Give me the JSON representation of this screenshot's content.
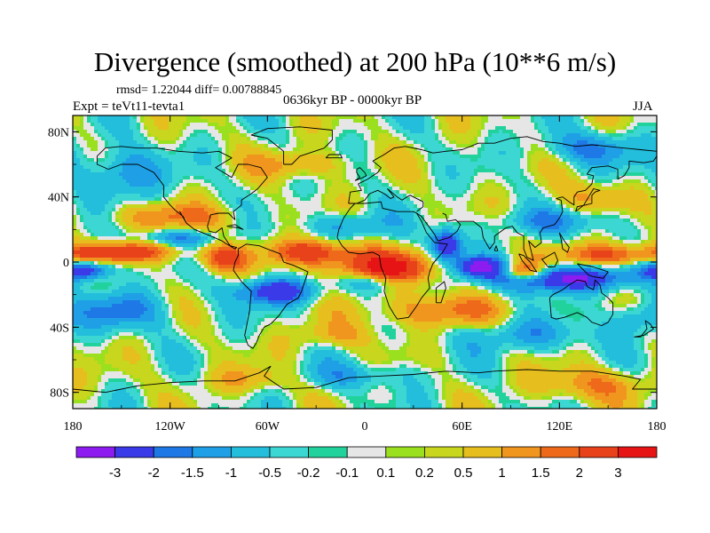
{
  "title": "Divergence (smoothed) at 200 hPa (10**6 m/s)",
  "stats": "rmsd= 1.22044 diff= 0.00788845",
  "experiment": "Expt = teVt11-tevta1",
  "period": "0636kyr BP - 0000kyr BP",
  "season": "JJA",
  "map": {
    "lat_ticks": [
      {
        "value": 80,
        "label": "80N"
      },
      {
        "value": 40,
        "label": "40N"
      },
      {
        "value": 0,
        "label": "0"
      },
      {
        "value": -40,
        "label": "40S"
      },
      {
        "value": -80,
        "label": "80S"
      }
    ],
    "lon_ticks": [
      {
        "value": -180,
        "label": "180"
      },
      {
        "value": -120,
        "label": "120W"
      },
      {
        "value": -60,
        "label": "60W"
      },
      {
        "value": 0,
        "label": "0"
      },
      {
        "value": 60,
        "label": "60E"
      },
      {
        "value": 120,
        "label": "120E"
      },
      {
        "value": 180,
        "label": "180"
      }
    ],
    "lat_range": [
      -90,
      90
    ],
    "lon_range": [
      -180,
      180
    ],
    "field_blobs": [
      {
        "lon": 12,
        "lat": -4,
        "rlon": 30,
        "rlat": 10,
        "amp": 3.4
      },
      {
        "lon": -32,
        "lat": 6,
        "rlon": 28,
        "rlat": 8,
        "amp": 2.6
      },
      {
        "lon": -148,
        "lat": 6,
        "rlon": 32,
        "rlat": 6,
        "amp": 2.6
      },
      {
        "lon": -88,
        "lat": 2,
        "rlon": 14,
        "rlat": 8,
        "amp": 2.2
      },
      {
        "lon": 150,
        "lat": 4,
        "rlon": 32,
        "rlat": 7,
        "amp": 2.3
      },
      {
        "lon": 98,
        "lat": -6,
        "rlon": 12,
        "rlat": 6,
        "amp": 2.8
      },
      {
        "lon": -120,
        "lat": 28,
        "rlon": 40,
        "rlat": 8,
        "amp": 1.4
      },
      {
        "lon": 45,
        "lat": -30,
        "rlon": 40,
        "rlat": 10,
        "amp": 1.6
      },
      {
        "lon": -40,
        "lat": 60,
        "rlon": 30,
        "rlat": 8,
        "amp": 1.2
      },
      {
        "lon": 140,
        "lat": 40,
        "rlon": 25,
        "rlat": 10,
        "amp": 1.0
      },
      {
        "lon": 140,
        "lat": -75,
        "rlon": 35,
        "rlat": 10,
        "amp": 1.4
      },
      {
        "lon": -70,
        "lat": -72,
        "rlon": 30,
        "rlat": 8,
        "amp": 1.0
      },
      {
        "lon": -20,
        "lat": -45,
        "rlon": 25,
        "rlat": 8,
        "amp": 1.0
      },
      {
        "lon": 50,
        "lat": 10,
        "rlon": 10,
        "rlat": 10,
        "amp": -3.2
      },
      {
        "lon": 70,
        "lat": -3,
        "rlon": 14,
        "rlat": 6,
        "amp": -3.0
      },
      {
        "lon": 120,
        "lat": -10,
        "rlon": 40,
        "rlat": 8,
        "amp": -3.3
      },
      {
        "lon": -172,
        "lat": -5,
        "rlon": 16,
        "rlat": 6,
        "amp": -3.0
      },
      {
        "lon": -55,
        "lat": -18,
        "rlon": 25,
        "rlat": 8,
        "amp": -2.6
      },
      {
        "lon": 5,
        "lat": -12,
        "rlon": 20,
        "rlat": 6,
        "amp": -1.8
      },
      {
        "lon": -115,
        "lat": 15,
        "rlon": 25,
        "rlat": 5,
        "amp": -1.4
      },
      {
        "lon": -10,
        "lat": 22,
        "rlon": 25,
        "rlat": 8,
        "amp": -1.3
      },
      {
        "lon": 120,
        "lat": 25,
        "rlon": 40,
        "rlat": 8,
        "amp": -1.2
      },
      {
        "lon": -150,
        "lat": 55,
        "rlon": 25,
        "rlat": 15,
        "amp": -1.6
      },
      {
        "lon": 140,
        "lat": 70,
        "rlon": 30,
        "rlat": 10,
        "amp": -1.5
      },
      {
        "lon": -150,
        "lat": -30,
        "rlon": 30,
        "rlat": 12,
        "amp": -1.5
      },
      {
        "lon": 100,
        "lat": -45,
        "rlon": 40,
        "rlat": 10,
        "amp": -1.2
      },
      {
        "lon": -10,
        "lat": -70,
        "rlon": 40,
        "rlat": 8,
        "amp": -1.0
      },
      {
        "lon": 165,
        "lat": -35,
        "rlon": 15,
        "rlat": 10,
        "amp": -1.2
      }
    ]
  },
  "colorbar": {
    "boundary_labels": [
      "-3",
      "-2",
      "-1.5",
      "-1",
      "-0.5",
      "-0.2",
      "-0.1",
      "0.1",
      "0.2",
      "0.5",
      "1",
      "1.5",
      "2",
      "3"
    ],
    "colors": [
      "#8c1cf0",
      "#3a3ae8",
      "#1e78e6",
      "#1fa0e6",
      "#22bedb",
      "#3dd7d3",
      "#22d29c",
      "#e6e6e6",
      "#9be01e",
      "#c8d61e",
      "#e6be1e",
      "#f0961e",
      "#ee6a1a",
      "#e8421a",
      "#e61414"
    ]
  },
  "coastlines": [
    [
      [
        -165,
        65
      ],
      [
        -160,
        70
      ],
      [
        -150,
        71
      ],
      [
        -140,
        70
      ],
      [
        -128,
        70
      ],
      [
        -115,
        68
      ],
      [
        -100,
        67
      ],
      [
        -90,
        68
      ],
      [
        -82,
        64
      ],
      [
        -92,
        58
      ],
      [
        -82,
        52
      ],
      [
        -78,
        60
      ],
      [
        -72,
        60
      ],
      [
        -64,
        58
      ],
      [
        -60,
        52
      ],
      [
        -66,
        45
      ],
      [
        -70,
        42
      ],
      [
        -76,
        38
      ],
      [
        -76,
        35
      ],
      [
        -81,
        31
      ],
      [
        -80,
        26
      ],
      [
        -82,
        28
      ],
      [
        -84,
        30
      ],
      [
        -90,
        30
      ],
      [
        -95,
        29
      ],
      [
        -97,
        22
      ],
      [
        -96,
        19
      ],
      [
        -92,
        18
      ],
      [
        -88,
        21
      ],
      [
        -87,
        16
      ],
      [
        -83,
        10
      ],
      [
        -79,
        9
      ],
      [
        -80,
        8
      ],
      [
        -85,
        11
      ],
      [
        -88,
        13
      ],
      [
        -95,
        16
      ],
      [
        -105,
        20
      ],
      [
        -110,
        24
      ],
      [
        -114,
        31
      ],
      [
        -110,
        24
      ],
      [
        -112,
        28
      ],
      [
        -117,
        32
      ],
      [
        -120,
        35
      ],
      [
        -124,
        40
      ],
      [
        -124,
        47
      ],
      [
        -130,
        55
      ],
      [
        -140,
        60
      ],
      [
        -150,
        60
      ],
      [
        -158,
        57
      ],
      [
        -165,
        60
      ],
      [
        -165,
        65
      ]
    ],
    [
      [
        -78,
        8
      ],
      [
        -73,
        11
      ],
      [
        -65,
        10
      ],
      [
        -60,
        8
      ],
      [
        -52,
        5
      ],
      [
        -50,
        0
      ],
      [
        -44,
        -2
      ],
      [
        -35,
        -6
      ],
      [
        -37,
        -12
      ],
      [
        -39,
        -18
      ],
      [
        -41,
        -22
      ],
      [
        -48,
        -26
      ],
      [
        -53,
        -33
      ],
      [
        -58,
        -38
      ],
      [
        -62,
        -40
      ],
      [
        -65,
        -45
      ],
      [
        -67,
        -50
      ],
      [
        -69,
        -53
      ],
      [
        -72,
        -51
      ],
      [
        -74,
        -45
      ],
      [
        -73,
        -40
      ],
      [
        -71,
        -30
      ],
      [
        -70,
        -18
      ],
      [
        -76,
        -12
      ],
      [
        -81,
        -5
      ],
      [
        -80,
        0
      ],
      [
        -78,
        4
      ],
      [
        -78,
        8
      ]
    ],
    [
      [
        -17,
        15
      ],
      [
        -16,
        20
      ],
      [
        -13,
        27
      ],
      [
        -9,
        33
      ],
      [
        -6,
        36
      ],
      [
        0,
        36
      ],
      [
        10,
        37
      ],
      [
        11,
        33
      ],
      [
        20,
        31
      ],
      [
        30,
        31
      ],
      [
        32,
        30
      ],
      [
        35,
        25
      ],
      [
        38,
        18
      ],
      [
        43,
        12
      ],
      [
        51,
        11
      ],
      [
        48,
        6
      ],
      [
        42,
        -1
      ],
      [
        40,
        -6
      ],
      [
        39,
        -10
      ],
      [
        40,
        -16
      ],
      [
        35,
        -22
      ],
      [
        32,
        -27
      ],
      [
        27,
        -34
      ],
      [
        20,
        -35
      ],
      [
        18,
        -32
      ],
      [
        15,
        -27
      ],
      [
        12,
        -18
      ],
      [
        13,
        -10
      ],
      [
        10,
        -3
      ],
      [
        9,
        4
      ],
      [
        5,
        6
      ],
      [
        -3,
        5
      ],
      [
        -10,
        6
      ],
      [
        -14,
        10
      ],
      [
        -17,
        15
      ]
    ],
    [
      [
        -10,
        36
      ],
      [
        -9,
        43
      ],
      [
        -2,
        44
      ],
      [
        -4,
        48
      ],
      [
        2,
        51
      ],
      [
        5,
        53
      ],
      [
        8,
        55
      ],
      [
        10,
        58
      ],
      [
        5,
        62
      ],
      [
        12,
        66
      ],
      [
        18,
        70
      ],
      [
        25,
        71
      ],
      [
        35,
        69
      ],
      [
        42,
        67
      ],
      [
        50,
        68
      ],
      [
        60,
        69
      ],
      [
        70,
        73
      ],
      [
        80,
        73
      ],
      [
        90,
        76
      ],
      [
        100,
        77
      ],
      [
        110,
        74
      ],
      [
        120,
        73
      ],
      [
        130,
        71
      ],
      [
        140,
        72
      ],
      [
        150,
        71
      ],
      [
        160,
        70
      ],
      [
        170,
        69
      ],
      [
        180,
        68
      ]
    ],
    [
      [
        -10,
        36
      ],
      [
        -5,
        36
      ],
      [
        0,
        38
      ],
      [
        3,
        42
      ],
      [
        8,
        44
      ],
      [
        12,
        42
      ],
      [
        16,
        39
      ],
      [
        18,
        40
      ],
      [
        14,
        45
      ],
      [
        20,
        40
      ],
      [
        23,
        38
      ],
      [
        26,
        40
      ],
      [
        28,
        41
      ],
      [
        36,
        37
      ],
      [
        36,
        34
      ],
      [
        32,
        31
      ]
    ],
    [
      [
        32,
        30
      ],
      [
        35,
        28
      ],
      [
        43,
        17
      ],
      [
        45,
        13
      ],
      [
        52,
        15
      ],
      [
        57,
        19
      ],
      [
        59,
        23
      ],
      [
        56,
        26
      ],
      [
        51,
        25
      ],
      [
        50,
        29
      ],
      [
        48,
        30
      ]
    ],
    [
      [
        57,
        25
      ],
      [
        62,
        25
      ],
      [
        67,
        25
      ],
      [
        72,
        21
      ],
      [
        73,
        15
      ],
      [
        77,
        8
      ],
      [
        80,
        12
      ],
      [
        80,
        16
      ],
      [
        87,
        21
      ],
      [
        91,
        22
      ],
      [
        94,
        18
      ],
      [
        98,
        16
      ],
      [
        98,
        8
      ],
      [
        100,
        3
      ],
      [
        104,
        1
      ],
      [
        103,
        5
      ],
      [
        101,
        13
      ],
      [
        105,
        9
      ],
      [
        109,
        12
      ],
      [
        108,
        18
      ],
      [
        110,
        21
      ],
      [
        117,
        23
      ],
      [
        120,
        27
      ],
      [
        122,
        31
      ],
      [
        121,
        38
      ],
      [
        118,
        39
      ],
      [
        122,
        40
      ],
      [
        126,
        37
      ],
      [
        129,
        35
      ],
      [
        129,
        40
      ],
      [
        131,
        43
      ],
      [
        136,
        44
      ],
      [
        140,
        48
      ],
      [
        141,
        53
      ],
      [
        137,
        54
      ],
      [
        140,
        58
      ],
      [
        150,
        59
      ],
      [
        156,
        57
      ],
      [
        156,
        51
      ],
      [
        160,
        53
      ],
      [
        163,
        58
      ],
      [
        163,
        62
      ],
      [
        172,
        61
      ],
      [
        178,
        62
      ],
      [
        180,
        65
      ]
    ],
    [
      [
        114,
        -22
      ],
      [
        115,
        -34
      ],
      [
        118,
        -35
      ],
      [
        123,
        -34
      ],
      [
        131,
        -31
      ],
      [
        137,
        -34
      ],
      [
        140,
        -37
      ],
      [
        146,
        -39
      ],
      [
        150,
        -37
      ],
      [
        153,
        -32
      ],
      [
        153,
        -25
      ],
      [
        150,
        -22
      ],
      [
        146,
        -19
      ],
      [
        145,
        -14
      ],
      [
        142,
        -11
      ],
      [
        141,
        -17
      ],
      [
        137,
        -15
      ],
      [
        136,
        -12
      ],
      [
        131,
        -11
      ],
      [
        126,
        -14
      ],
      [
        122,
        -17
      ],
      [
        116,
        -20
      ],
      [
        114,
        -22
      ]
    ],
    [
      [
        44,
        -25
      ],
      [
        47,
        -25
      ],
      [
        50,
        -16
      ],
      [
        49,
        -12
      ],
      [
        44,
        -16
      ],
      [
        44,
        -25
      ]
    ],
    [
      [
        95,
        5
      ],
      [
        98,
        4
      ],
      [
        102,
        0
      ],
      [
        106,
        -6
      ],
      [
        102,
        -5
      ],
      [
        97,
        1
      ],
      [
        95,
        5
      ]
    ],
    [
      [
        109,
        2
      ],
      [
        113,
        -3
      ],
      [
        117,
        -3
      ],
      [
        119,
        1
      ],
      [
        117,
        6
      ],
      [
        110,
        2
      ],
      [
        109,
        2
      ]
    ],
    [
      [
        131,
        -1
      ],
      [
        141,
        -3
      ],
      [
        150,
        -6
      ],
      [
        147,
        -10
      ],
      [
        141,
        -9
      ],
      [
        138,
        -8
      ],
      [
        131,
        -1
      ]
    ],
    [
      [
        130,
        31
      ],
      [
        131,
        34
      ],
      [
        136,
        35
      ],
      [
        140,
        36
      ],
      [
        140,
        41
      ],
      [
        142,
        43
      ],
      [
        145,
        44
      ],
      [
        141,
        45
      ],
      [
        138,
        40
      ],
      [
        135,
        35
      ],
      [
        130,
        31
      ]
    ],
    [
      [
        -50,
        60
      ],
      [
        -45,
        60
      ],
      [
        -40,
        65
      ],
      [
        -25,
        70
      ],
      [
        -20,
        75
      ],
      [
        -20,
        81
      ],
      [
        -40,
        83
      ],
      [
        -60,
        82
      ],
      [
        -70,
        78
      ],
      [
        -60,
        76
      ],
      [
        -55,
        72
      ],
      [
        -50,
        68
      ],
      [
        -50,
        60
      ]
    ],
    [
      [
        -6,
        50
      ],
      [
        -3,
        51
      ],
      [
        1,
        53
      ],
      [
        0,
        55
      ],
      [
        -3,
        58
      ],
      [
        -5,
        57
      ],
      [
        -5,
        55
      ],
      [
        -3,
        52
      ],
      [
        -6,
        50
      ]
    ],
    [
      [
        -24,
        64
      ],
      [
        -14,
        64
      ],
      [
        -15,
        66
      ],
      [
        -22,
        66
      ],
      [
        -24,
        64
      ]
    ],
    [
      [
        166,
        -46
      ],
      [
        170,
        -46
      ],
      [
        174,
        -41
      ],
      [
        173,
        -36
      ],
      [
        176,
        -38
      ],
      [
        178,
        -41
      ],
      [
        172,
        -45
      ],
      [
        166,
        -46
      ]
    ],
    [
      [
        -180,
        -78
      ],
      [
        -160,
        -80
      ],
      [
        -140,
        -76
      ],
      [
        -120,
        -74
      ],
      [
        -100,
        -73
      ],
      [
        -80,
        -73
      ],
      [
        -65,
        -68
      ],
      [
        -58,
        -64
      ],
      [
        -62,
        -70
      ],
      [
        -50,
        -78
      ],
      [
        -30,
        -77
      ],
      [
        -10,
        -71
      ],
      [
        10,
        -70
      ],
      [
        30,
        -69
      ],
      [
        50,
        -67
      ],
      [
        70,
        -68
      ],
      [
        80,
        -67
      ],
      [
        100,
        -66
      ],
      [
        120,
        -67
      ],
      [
        140,
        -67
      ],
      [
        160,
        -70
      ],
      [
        170,
        -72
      ],
      [
        165,
        -78
      ],
      [
        180,
        -78
      ]
    ],
    [
      [
        80,
        7
      ],
      [
        82,
        7
      ],
      [
        81,
        10
      ],
      [
        80,
        7
      ]
    ],
    [
      [
        120,
        18
      ],
      [
        123,
        13
      ],
      [
        126,
        9
      ],
      [
        125,
        6
      ],
      [
        122,
        8
      ],
      [
        121,
        14
      ],
      [
        120,
        18
      ]
    ],
    [
      [
        -85,
        22
      ],
      [
        -80,
        23
      ],
      [
        -75,
        20
      ],
      [
        -78,
        21
      ],
      [
        -85,
        22
      ]
    ]
  ]
}
